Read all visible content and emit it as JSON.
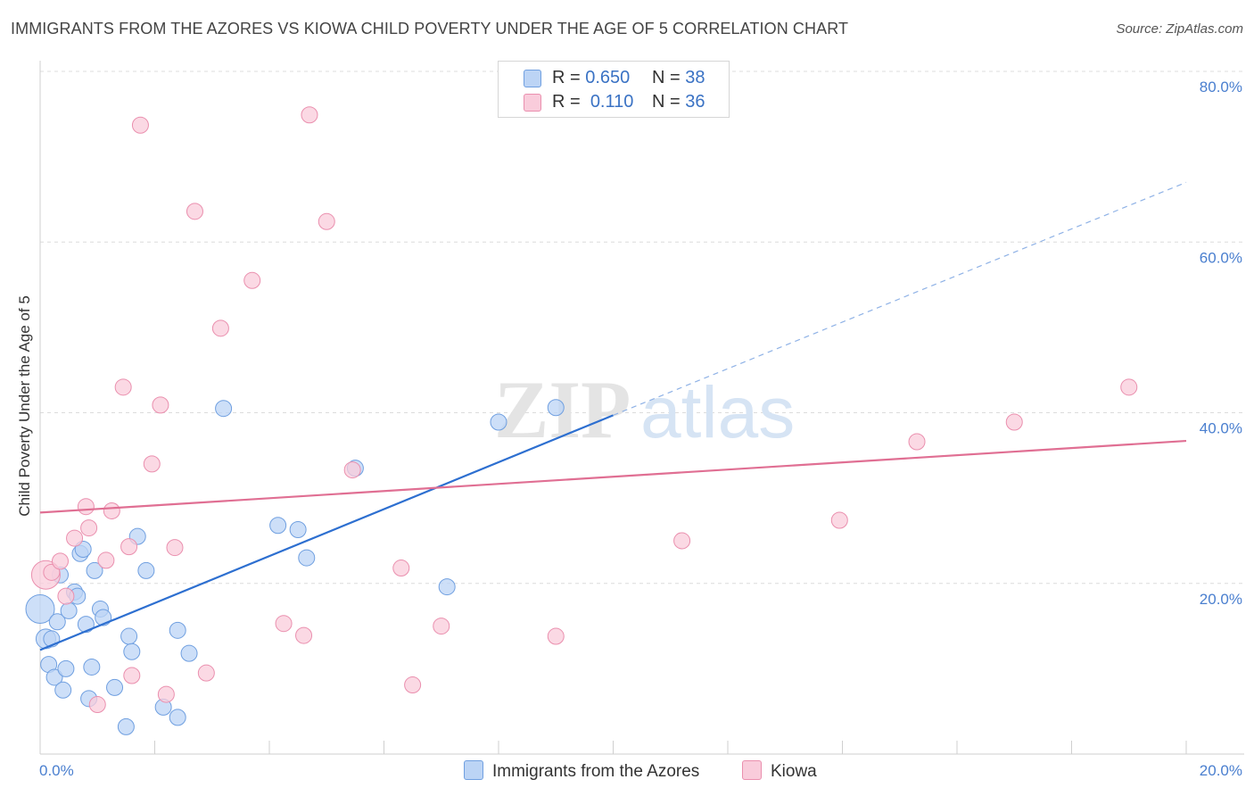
{
  "header": {
    "title": "IMMIGRANTS FROM THE AZORES VS KIOWA CHILD POVERTY UNDER THE AGE OF 5 CORRELATION CHART",
    "source": "Source: ZipAtlas.com"
  },
  "watermark": {
    "zip": "ZIP",
    "atlas": "atlas"
  },
  "legend": {
    "rows": [
      {
        "r_label": "R =",
        "r_value": "0.650",
        "n_label": "N =",
        "n_value": "38",
        "color": "#a9c8f2",
        "border": "#6f9fe0"
      },
      {
        "r_label": "R =",
        "r_value": "0.110",
        "n_label": "N =",
        "n_value": "36",
        "color": "#f7c3d3",
        "border": "#ea8fae"
      }
    ]
  },
  "chart_data": {
    "type": "scatter",
    "title": "IMMIGRANTS FROM THE AZORES VS KIOWA CHILD POVERTY UNDER THE AGE OF 5 CORRELATION CHART",
    "xlabel": "",
    "ylabel": "Child Poverty Under the Age of 5",
    "xlim": [
      0,
      20
    ],
    "ylim": [
      0,
      80
    ],
    "x_tick_labels": [
      "0.0%",
      "20.0%"
    ],
    "y_tick_labels": [
      "20.0%",
      "40.0%",
      "60.0%",
      "80.0%"
    ],
    "y_tick_values": [
      20,
      40,
      60,
      80
    ],
    "series": [
      {
        "name": "Immigrants from the Azores",
        "color": "#6f9fe0",
        "fill": "#bcd4f5",
        "trend_color": "#2d6fd0",
        "trend": {
          "x_start": 0,
          "y_start": 12.2,
          "x_solid_end": 10,
          "y_solid_end": 39.7,
          "x_dash_end": 20,
          "y_dash_end": 67.0
        },
        "points": [
          [
            0.0,
            17.0,
            16
          ],
          [
            0.1,
            13.5,
            11
          ],
          [
            0.2,
            13.5,
            9
          ],
          [
            0.15,
            10.5,
            9
          ],
          [
            0.25,
            9.0,
            9
          ],
          [
            0.3,
            15.5,
            9
          ],
          [
            0.35,
            21.0,
            9
          ],
          [
            0.4,
            7.5,
            9
          ],
          [
            0.45,
            10.0,
            9
          ],
          [
            0.5,
            16.8,
            9
          ],
          [
            0.6,
            19.0,
            9
          ],
          [
            0.65,
            18.5,
            9
          ],
          [
            0.7,
            23.5,
            9
          ],
          [
            0.75,
            24.0,
            9
          ],
          [
            0.8,
            15.2,
            9
          ],
          [
            0.85,
            6.5,
            9
          ],
          [
            0.9,
            10.2,
            9
          ],
          [
            0.95,
            21.5,
            9
          ],
          [
            1.05,
            17.0,
            9
          ],
          [
            1.1,
            16.0,
            9
          ],
          [
            1.3,
            7.8,
            9
          ],
          [
            1.5,
            3.2,
            9
          ],
          [
            1.55,
            13.8,
            9
          ],
          [
            1.6,
            12.0,
            9
          ],
          [
            1.7,
            25.5,
            9
          ],
          [
            1.85,
            21.5,
            9
          ],
          [
            2.15,
            5.5,
            9
          ],
          [
            2.4,
            14.5,
            9
          ],
          [
            2.4,
            4.3,
            9
          ],
          [
            2.6,
            11.8,
            9
          ],
          [
            3.2,
            40.5,
            9
          ],
          [
            4.15,
            26.8,
            9
          ],
          [
            4.5,
            26.3,
            9
          ],
          [
            4.65,
            23.0,
            9
          ],
          [
            5.5,
            33.5,
            9
          ],
          [
            7.1,
            19.6,
            9
          ],
          [
            8.0,
            38.9,
            9
          ],
          [
            9.0,
            40.6,
            9
          ]
        ]
      },
      {
        "name": "Kiowa",
        "color": "#ea8fae",
        "fill": "#f9ccdb",
        "trend_color": "#e06f93",
        "trend": {
          "x_start": 0,
          "y_start": 28.3,
          "x_end": 20,
          "y_end": 36.7
        },
        "points": [
          [
            0.1,
            21.0,
            16
          ],
          [
            0.2,
            21.3,
            9
          ],
          [
            0.35,
            22.6,
            9
          ],
          [
            0.45,
            18.5,
            9
          ],
          [
            0.6,
            25.3,
            9
          ],
          [
            0.8,
            29.0,
            9
          ],
          [
            0.85,
            26.5,
            9
          ],
          [
            1.0,
            5.8,
            9
          ],
          [
            1.15,
            22.7,
            9
          ],
          [
            1.25,
            28.5,
            9
          ],
          [
            1.45,
            43.0,
            9
          ],
          [
            1.55,
            24.3,
            9
          ],
          [
            1.6,
            9.2,
            9
          ],
          [
            1.75,
            73.7,
            9
          ],
          [
            1.95,
            34.0,
            9
          ],
          [
            2.1,
            40.9,
            9
          ],
          [
            2.2,
            7.0,
            9
          ],
          [
            2.35,
            24.2,
            9
          ],
          [
            2.7,
            63.6,
            9
          ],
          [
            2.9,
            9.5,
            9
          ],
          [
            3.15,
            49.9,
            9
          ],
          [
            3.7,
            55.5,
            9
          ],
          [
            4.25,
            15.3,
            9
          ],
          [
            4.6,
            13.9,
            9
          ],
          [
            4.7,
            74.9,
            9
          ],
          [
            5.0,
            62.4,
            9
          ],
          [
            5.45,
            33.3,
            9
          ],
          [
            6.3,
            21.8,
            9
          ],
          [
            6.5,
            8.1,
            9
          ],
          [
            7.0,
            15.0,
            9
          ],
          [
            9.0,
            13.8,
            9
          ],
          [
            11.2,
            25.0,
            9
          ],
          [
            13.95,
            27.4,
            9
          ],
          [
            15.3,
            36.6,
            9
          ],
          [
            17.0,
            38.9,
            9
          ],
          [
            19.0,
            43.0,
            9
          ]
        ]
      }
    ],
    "grid": true,
    "legend_position": "top-center"
  },
  "bottom_legend": {
    "items": [
      {
        "label": "Immigrants from the Azores",
        "color": "#bcd4f5",
        "border": "#6f9fe0"
      },
      {
        "label": "Kiowa",
        "color": "#f9ccdb",
        "border": "#ea8fae"
      }
    ]
  }
}
